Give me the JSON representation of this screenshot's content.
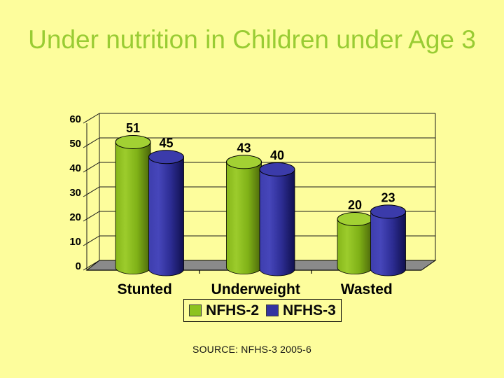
{
  "slide": {
    "background_color": "#FDFD9C",
    "title": "Under nutrition in Children under Age 3",
    "title_color": "#99CC33",
    "source_note": "SOURCE: NFHS-3 2005-6",
    "text_color": "#000000"
  },
  "chart_data": {
    "type": "bar",
    "subtype": "3d-cylinder",
    "title": "",
    "xlabel": "",
    "ylabel": "",
    "categories": [
      "Stunted",
      "Underweight",
      "Wasted"
    ],
    "series": [
      {
        "name": "NFHS-2",
        "color": "#8CC320",
        "top_color": "#A2D133",
        "gradient": [
          "#86B61A",
          "#9CCC2C",
          "#7FB117",
          "#4A650A"
        ],
        "values": [
          51,
          43,
          20
        ]
      },
      {
        "name": "NFHS-3",
        "color": "#3333A0",
        "top_color": "#3B3BAA",
        "gradient": [
          "#3E3EAE",
          "#4646BA",
          "#2D2D94",
          "#10104E"
        ],
        "values": [
          45,
          40,
          23
        ]
      }
    ],
    "ylim": [
      0,
      60
    ],
    "yticks": [
      0,
      10,
      20,
      30,
      40,
      50,
      60
    ],
    "grid": true,
    "data_labels": true,
    "legend_position": "bottom",
    "floor_color": "#8A8A8A",
    "line_color": "#1A1A1A"
  }
}
